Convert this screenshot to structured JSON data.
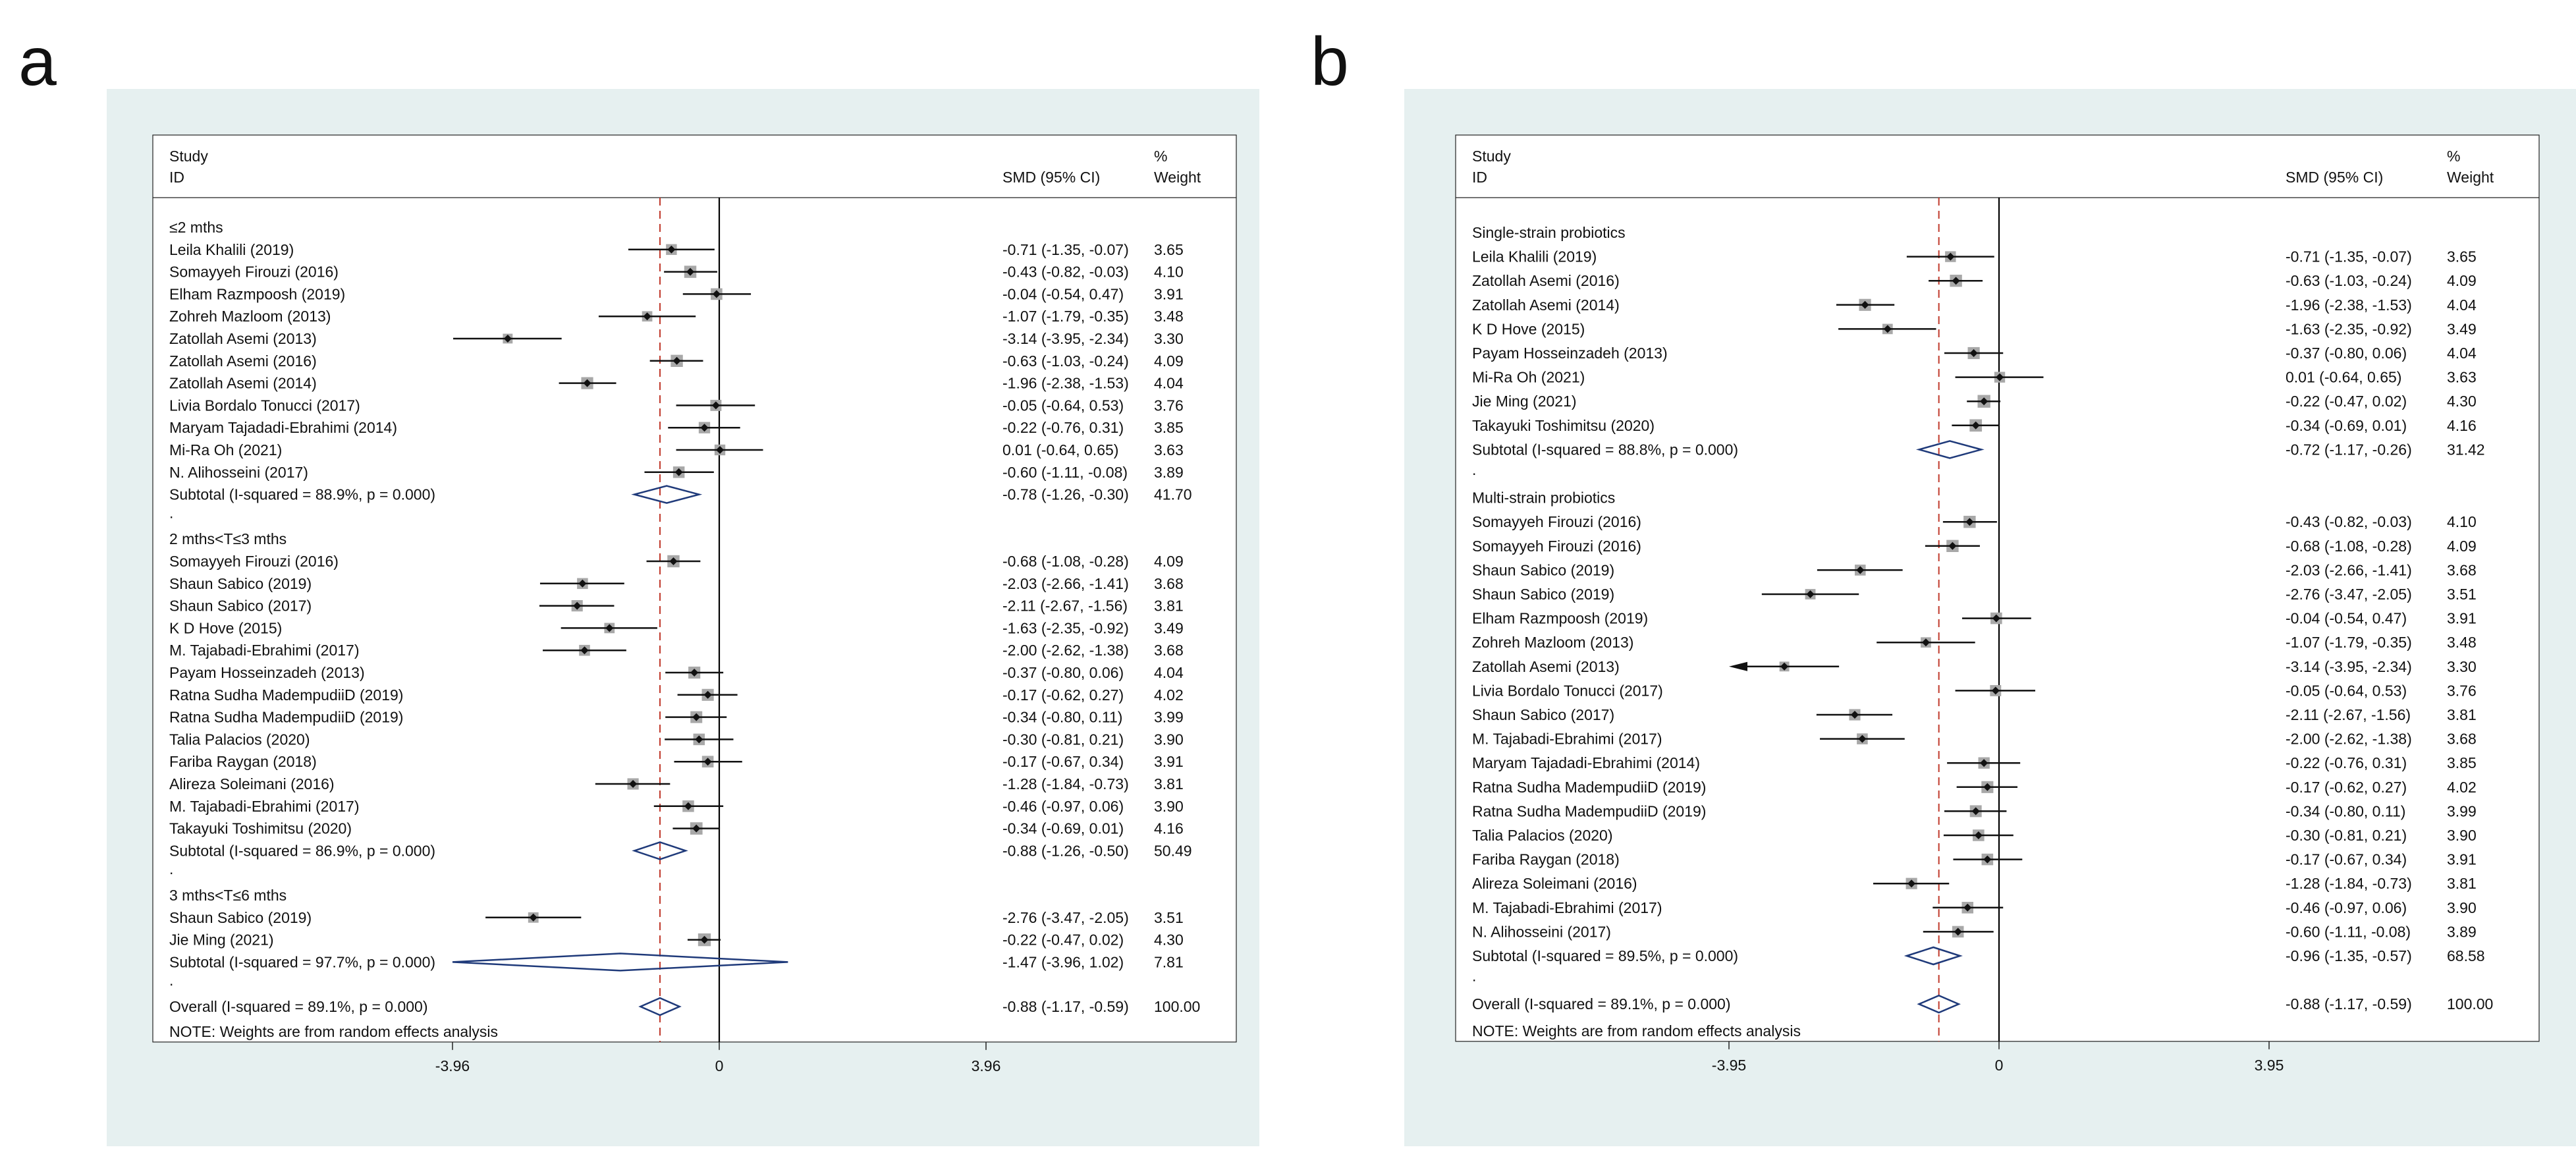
{
  "colors": {
    "panel_background": "#e6f0f0",
    "plot_background": "#ffffff",
    "null_line": "#000000",
    "overall_line": "#c0392b",
    "diamond": "#1f3a7a",
    "weight_box": "#a8a8a8",
    "point": "#111111"
  },
  "chart_data": [
    {
      "type": "forest",
      "panel_label": "a",
      "header": {
        "study": "Study",
        "id": "ID",
        "effect": "SMD (95% CI)",
        "weight_top": "%",
        "weight_bottom": "Weight"
      },
      "x_ticks": [
        {
          "value": -3.96,
          "label": "-3.96"
        },
        {
          "value": 0,
          "label": "0"
        },
        {
          "value": 3.96,
          "label": "3.96"
        }
      ],
      "xlim": [
        -3.96,
        3.96
      ],
      "overall_estimate": -0.88,
      "rows": [
        {
          "kind": "group",
          "label": "≤2 mths"
        },
        {
          "kind": "study",
          "label": "Leila Khalili (2019)",
          "est": -0.71,
          "lo": -1.35,
          "hi": -0.07,
          "ci": "-0.71 (-1.35, -0.07)",
          "weight": "3.65"
        },
        {
          "kind": "study",
          "label": "Somayyeh Firouzi (2016)",
          "est": -0.43,
          "lo": -0.82,
          "hi": -0.03,
          "ci": "-0.43 (-0.82, -0.03)",
          "weight": "4.10"
        },
        {
          "kind": "study",
          "label": "Elham Razmpoosh (2019)",
          "est": -0.04,
          "lo": -0.54,
          "hi": 0.47,
          "ci": "-0.04 (-0.54, 0.47)",
          "weight": "3.91"
        },
        {
          "kind": "study",
          "label": "Zohreh Mazloom (2013)",
          "est": -1.07,
          "lo": -1.79,
          "hi": -0.35,
          "ci": "-1.07 (-1.79, -0.35)",
          "weight": "3.48"
        },
        {
          "kind": "study",
          "label": "Zatollah Asemi  (2013)",
          "est": -3.14,
          "lo": -3.95,
          "hi": -2.34,
          "ci": "-3.14 (-3.95, -2.34)",
          "weight": "3.30"
        },
        {
          "kind": "study",
          "label": "Zatollah Asemi (2016)",
          "est": -0.63,
          "lo": -1.03,
          "hi": -0.24,
          "ci": "-0.63 (-1.03, -0.24)",
          "weight": "4.09"
        },
        {
          "kind": "study",
          "label": "Zatollah Asemi (2014)",
          "est": -1.96,
          "lo": -2.38,
          "hi": -1.53,
          "ci": "-1.96 (-2.38, -1.53)",
          "weight": "4.04"
        },
        {
          "kind": "study",
          "label": "Livia Bordalo Tonucci  (2017)",
          "est": -0.05,
          "lo": -0.64,
          "hi": 0.53,
          "ci": "-0.05 (-0.64, 0.53)",
          "weight": "3.76"
        },
        {
          "kind": "study",
          "label": "Maryam Tajadadi-Ebrahimi  (2014)",
          "est": -0.22,
          "lo": -0.76,
          "hi": 0.31,
          "ci": "-0.22 (-0.76, 0.31)",
          "weight": "3.85"
        },
        {
          "kind": "study",
          "label": "Mi-Ra Oh (2021)",
          "est": 0.01,
          "lo": -0.64,
          "hi": 0.65,
          "ci": "0.01 (-0.64, 0.65)",
          "weight": "3.63"
        },
        {
          "kind": "study",
          "label": "N. Alihosseini (2017)",
          "est": -0.6,
          "lo": -1.11,
          "hi": -0.08,
          "ci": "-0.60 (-1.11, -0.08)",
          "weight": "3.89"
        },
        {
          "kind": "subtotal",
          "label": "Subtotal  (I-squared = 88.9%, p = 0.000)",
          "est": -0.78,
          "lo": -1.26,
          "hi": -0.3,
          "ci": "-0.78 (-1.26, -0.30)",
          "weight": "41.70"
        },
        {
          "kind": "dot",
          "label": "."
        },
        {
          "kind": "group",
          "label": "2 mths<T≤3 mths"
        },
        {
          "kind": "study",
          "label": "Somayyeh Firouzi (2016)",
          "est": -0.68,
          "lo": -1.08,
          "hi": -0.28,
          "ci": "-0.68 (-1.08, -0.28)",
          "weight": "4.09"
        },
        {
          "kind": "study",
          "label": "Shaun Sabico (2019)",
          "est": -2.03,
          "lo": -2.66,
          "hi": -1.41,
          "ci": "-2.03 (-2.66, -1.41)",
          "weight": "3.68"
        },
        {
          "kind": "study",
          "label": "Shaun Sabico (2017)",
          "est": -2.11,
          "lo": -2.67,
          "hi": -1.56,
          "ci": "-2.11 (-2.67, -1.56)",
          "weight": "3.81"
        },
        {
          "kind": "study",
          "label": "K D Hove (2015)",
          "est": -1.63,
          "lo": -2.35,
          "hi": -0.92,
          "ci": "-1.63 (-2.35, -0.92)",
          "weight": "3.49"
        },
        {
          "kind": "study",
          "label": "M. Tajabadi-Ebrahimi (2017)",
          "est": -2.0,
          "lo": -2.62,
          "hi": -1.38,
          "ci": "-2.00 (-2.62, -1.38)",
          "weight": "3.68"
        },
        {
          "kind": "study",
          "label": "Payam Hosseinzadeh (2013)",
          "est": -0.37,
          "lo": -0.8,
          "hi": 0.06,
          "ci": "-0.37 (-0.80, 0.06)",
          "weight": "4.04"
        },
        {
          "kind": "study",
          "label": "Ratna Sudha MadempudiiD (2019)",
          "est": -0.17,
          "lo": -0.62,
          "hi": 0.27,
          "ci": "-0.17 (-0.62, 0.27)",
          "weight": "4.02"
        },
        {
          "kind": "study",
          "label": "Ratna Sudha MadempudiiD (2019)",
          "est": -0.34,
          "lo": -0.8,
          "hi": 0.11,
          "ci": "-0.34 (-0.80, 0.11)",
          "weight": "3.99"
        },
        {
          "kind": "study",
          "label": "Talia Palacios (2020)",
          "est": -0.3,
          "lo": -0.81,
          "hi": 0.21,
          "ci": "-0.30 (-0.81, 0.21)",
          "weight": "3.90"
        },
        {
          "kind": "study",
          "label": "Fariba Raygan (2018)",
          "est": -0.17,
          "lo": -0.67,
          "hi": 0.34,
          "ci": "-0.17 (-0.67, 0.34)",
          "weight": "3.91"
        },
        {
          "kind": "study",
          "label": "Alireza Soleimani (2016)",
          "est": -1.28,
          "lo": -1.84,
          "hi": -0.73,
          "ci": "-1.28 (-1.84, -0.73)",
          "weight": "3.81"
        },
        {
          "kind": "study",
          "label": "M. Tajabadi-Ebrahimi (2017)",
          "est": -0.46,
          "lo": -0.97,
          "hi": 0.06,
          "ci": "-0.46 (-0.97, 0.06)",
          "weight": "3.90"
        },
        {
          "kind": "study",
          "label": "Takayuki Toshimitsu (2020)",
          "est": -0.34,
          "lo": -0.69,
          "hi": 0.01,
          "ci": "-0.34 (-0.69, 0.01)",
          "weight": "4.16"
        },
        {
          "kind": "subtotal",
          "label": "Subtotal  (I-squared = 86.9%, p = 0.000)",
          "est": -0.88,
          "lo": -1.26,
          "hi": -0.5,
          "ci": "-0.88 (-1.26, -0.50)",
          "weight": "50.49"
        },
        {
          "kind": "dot",
          "label": "."
        },
        {
          "kind": "group",
          "label": "3 mths<T≤6 mths"
        },
        {
          "kind": "study",
          "label": "Shaun Sabico (2019)",
          "est": -2.76,
          "lo": -3.47,
          "hi": -2.05,
          "ci": "-2.76 (-3.47, -2.05)",
          "weight": "3.51"
        },
        {
          "kind": "study",
          "label": "Jie Ming (2021)",
          "est": -0.22,
          "lo": -0.47,
          "hi": 0.02,
          "ci": "-0.22 (-0.47, 0.02)",
          "weight": "4.30"
        },
        {
          "kind": "subtotal",
          "label": "Subtotal  (I-squared = 97.7%, p = 0.000)",
          "est": -1.47,
          "lo": -3.96,
          "hi": 1.02,
          "ci": "-1.47 (-3.96, 1.02)",
          "weight": "7.81"
        },
        {
          "kind": "dot",
          "label": "."
        },
        {
          "kind": "overall",
          "label": "Overall  (I-squared = 89.1%, p = 0.000)",
          "est": -0.88,
          "lo": -1.17,
          "hi": -0.59,
          "ci": "-0.88 (-1.17, -0.59)",
          "weight": "100.00"
        },
        {
          "kind": "note",
          "label": "NOTE: Weights are from random effects analysis"
        }
      ]
    },
    {
      "type": "forest",
      "panel_label": "b",
      "header": {
        "study": "Study",
        "id": "ID",
        "effect": "SMD (95% CI)",
        "weight_top": "%",
        "weight_bottom": "Weight"
      },
      "x_ticks": [
        {
          "value": -3.95,
          "label": "-3.95"
        },
        {
          "value": 0,
          "label": "0"
        },
        {
          "value": 3.95,
          "label": "3.95"
        }
      ],
      "xlim": [
        -3.95,
        3.95
      ],
      "overall_estimate": -0.88,
      "rows": [
        {
          "kind": "group",
          "label": "Single-strain probiotics"
        },
        {
          "kind": "study",
          "label": "Leila Khalili (2019)",
          "est": -0.71,
          "lo": -1.35,
          "hi": -0.07,
          "ci": "-0.71 (-1.35, -0.07)",
          "weight": "3.65"
        },
        {
          "kind": "study",
          "label": "Zatollah Asemi (2016)",
          "est": -0.63,
          "lo": -1.03,
          "hi": -0.24,
          "ci": "-0.63 (-1.03, -0.24)",
          "weight": "4.09"
        },
        {
          "kind": "study",
          "label": "Zatollah Asemi (2014)",
          "est": -1.96,
          "lo": -2.38,
          "hi": -1.53,
          "ci": "-1.96 (-2.38, -1.53)",
          "weight": "4.04"
        },
        {
          "kind": "study",
          "label": "K D Hove (2015)",
          "est": -1.63,
          "lo": -2.35,
          "hi": -0.92,
          "ci": "-1.63 (-2.35, -0.92)",
          "weight": "3.49"
        },
        {
          "kind": "study",
          "label": "Payam Hosseinzadeh (2013)",
          "est": -0.37,
          "lo": -0.8,
          "hi": 0.06,
          "ci": "-0.37 (-0.80, 0.06)",
          "weight": "4.04"
        },
        {
          "kind": "study",
          "label": "Mi-Ra Oh (2021)",
          "est": 0.01,
          "lo": -0.64,
          "hi": 0.65,
          "ci": "0.01 (-0.64, 0.65)",
          "weight": "3.63"
        },
        {
          "kind": "study",
          "label": "Jie Ming (2021)",
          "est": -0.22,
          "lo": -0.47,
          "hi": 0.02,
          "ci": "-0.22 (-0.47, 0.02)",
          "weight": "4.30"
        },
        {
          "kind": "study",
          "label": "Takayuki Toshimitsu (2020)",
          "est": -0.34,
          "lo": -0.69,
          "hi": 0.01,
          "ci": "-0.34 (-0.69, 0.01)",
          "weight": "4.16"
        },
        {
          "kind": "subtotal",
          "label": "Subtotal  (I-squared = 88.8%, p = 0.000)",
          "est": -0.72,
          "lo": -1.17,
          "hi": -0.26,
          "ci": "-0.72 (-1.17, -0.26)",
          "weight": "31.42"
        },
        {
          "kind": "dot",
          "label": "."
        },
        {
          "kind": "group",
          "label": "Multi-strain probiotics"
        },
        {
          "kind": "study",
          "label": "Somayyeh Firouzi (2016)",
          "est": -0.43,
          "lo": -0.82,
          "hi": -0.03,
          "ci": "-0.43 (-0.82, -0.03)",
          "weight": "4.10"
        },
        {
          "kind": "study",
          "label": "Somayyeh Firouzi (2016)",
          "est": -0.68,
          "lo": -1.08,
          "hi": -0.28,
          "ci": "-0.68 (-1.08, -0.28)",
          "weight": "4.09"
        },
        {
          "kind": "study",
          "label": "Shaun Sabico (2019)",
          "est": -2.03,
          "lo": -2.66,
          "hi": -1.41,
          "ci": "-2.03 (-2.66, -1.41)",
          "weight": "3.68"
        },
        {
          "kind": "study",
          "label": "Shaun Sabico (2019)",
          "est": -2.76,
          "lo": -3.47,
          "hi": -2.05,
          "ci": "-2.76 (-3.47, -2.05)",
          "weight": "3.51"
        },
        {
          "kind": "study",
          "label": "Elham Razmpoosh (2019)",
          "est": -0.04,
          "lo": -0.54,
          "hi": 0.47,
          "ci": "-0.04 (-0.54, 0.47)",
          "weight": "3.91"
        },
        {
          "kind": "study",
          "label": "Zohreh Mazloom (2013)",
          "est": -1.07,
          "lo": -1.79,
          "hi": -0.35,
          "ci": "-1.07 (-1.79, -0.35)",
          "weight": "3.48"
        },
        {
          "kind": "study",
          "label": "Zatollah Asemi  (2013)",
          "est": -3.14,
          "lo": -3.95,
          "hi": -2.34,
          "ci": "-3.14 (-3.95, -2.34)",
          "weight": "3.30",
          "truncated_left": true
        },
        {
          "kind": "study",
          "label": "Livia Bordalo Tonucci  (2017)",
          "est": -0.05,
          "lo": -0.64,
          "hi": 0.53,
          "ci": "-0.05 (-0.64, 0.53)",
          "weight": "3.76"
        },
        {
          "kind": "study",
          "label": "Shaun Sabico (2017)",
          "est": -2.11,
          "lo": -2.67,
          "hi": -1.56,
          "ci": "-2.11 (-2.67, -1.56)",
          "weight": "3.81"
        },
        {
          "kind": "study",
          "label": "M. Tajabadi-Ebrahimi (2017)",
          "est": -2.0,
          "lo": -2.62,
          "hi": -1.38,
          "ci": "-2.00 (-2.62, -1.38)",
          "weight": "3.68"
        },
        {
          "kind": "study",
          "label": "Maryam Tajadadi-Ebrahimi  (2014)",
          "est": -0.22,
          "lo": -0.76,
          "hi": 0.31,
          "ci": "-0.22 (-0.76, 0.31)",
          "weight": "3.85"
        },
        {
          "kind": "study",
          "label": "Ratna Sudha MadempudiiD (2019)",
          "est": -0.17,
          "lo": -0.62,
          "hi": 0.27,
          "ci": "-0.17 (-0.62, 0.27)",
          "weight": "4.02"
        },
        {
          "kind": "study",
          "label": "Ratna Sudha MadempudiiD (2019)",
          "est": -0.34,
          "lo": -0.8,
          "hi": 0.11,
          "ci": "-0.34 (-0.80, 0.11)",
          "weight": "3.99"
        },
        {
          "kind": "study",
          "label": "Talia Palacios (2020)",
          "est": -0.3,
          "lo": -0.81,
          "hi": 0.21,
          "ci": "-0.30 (-0.81, 0.21)",
          "weight": "3.90"
        },
        {
          "kind": "study",
          "label": "Fariba Raygan (2018)",
          "est": -0.17,
          "lo": -0.67,
          "hi": 0.34,
          "ci": "-0.17 (-0.67, 0.34)",
          "weight": "3.91"
        },
        {
          "kind": "study",
          "label": "Alireza Soleimani (2016)",
          "est": -1.28,
          "lo": -1.84,
          "hi": -0.73,
          "ci": "-1.28 (-1.84, -0.73)",
          "weight": "3.81"
        },
        {
          "kind": "study",
          "label": "M. Tajabadi-Ebrahimi (2017)",
          "est": -0.46,
          "lo": -0.97,
          "hi": 0.06,
          "ci": "-0.46 (-0.97, 0.06)",
          "weight": "3.90"
        },
        {
          "kind": "study",
          "label": "N. Alihosseini (2017)",
          "est": -0.6,
          "lo": -1.11,
          "hi": -0.08,
          "ci": "-0.60 (-1.11, -0.08)",
          "weight": "3.89"
        },
        {
          "kind": "subtotal",
          "label": "Subtotal  (I-squared = 89.5%, p = 0.000)",
          "est": -0.96,
          "lo": -1.35,
          "hi": -0.57,
          "ci": "-0.96 (-1.35, -0.57)",
          "weight": "68.58"
        },
        {
          "kind": "dot",
          "label": "."
        },
        {
          "kind": "overall",
          "label": "Overall  (I-squared = 89.1%, p = 0.000)",
          "est": -0.88,
          "lo": -1.17,
          "hi": -0.59,
          "ci": "-0.88 (-1.17, -0.59)",
          "weight": "100.00"
        },
        {
          "kind": "note",
          "label": "NOTE: Weights are from random effects analysis"
        }
      ]
    }
  ]
}
